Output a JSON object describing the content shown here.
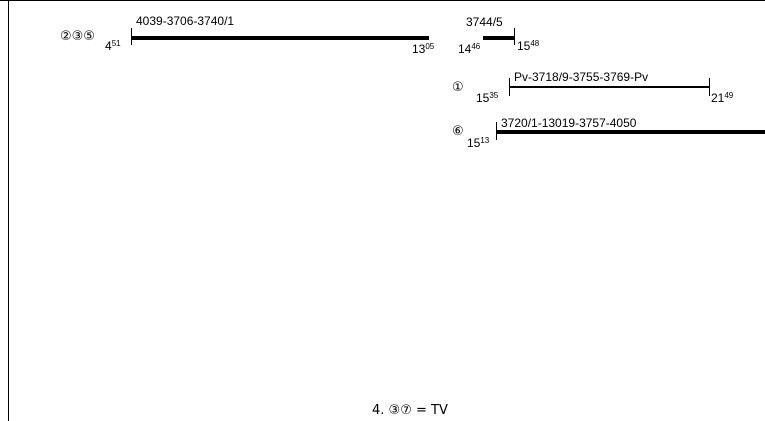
{
  "rows": [
    {
      "markers": "②③⑤",
      "segments": [
        {
          "label": "4039-3706-3740/1",
          "start": {
            "h": "4",
            "m": "51"
          },
          "end": {
            "h": "13",
            "m": "05"
          }
        },
        {
          "label": "3744/5",
          "start": {
            "h": "14",
            "m": "46"
          },
          "end": {
            "h": "15",
            "m": "48"
          }
        }
      ]
    },
    {
      "markers": "①",
      "segments": [
        {
          "label": "Pv-3718/9-3755-3769-Pv",
          "start": {
            "h": "15",
            "m": "35"
          },
          "end": {
            "h": "21",
            "m": "49"
          }
        }
      ]
    },
    {
      "markers": "⑥",
      "segments": [
        {
          "label": "3720/1-13019-3757-4050",
          "start": {
            "h": "15",
            "m": "13"
          },
          "end": null
        }
      ]
    }
  ],
  "footer": "4.  ③⑦  =  TV"
}
